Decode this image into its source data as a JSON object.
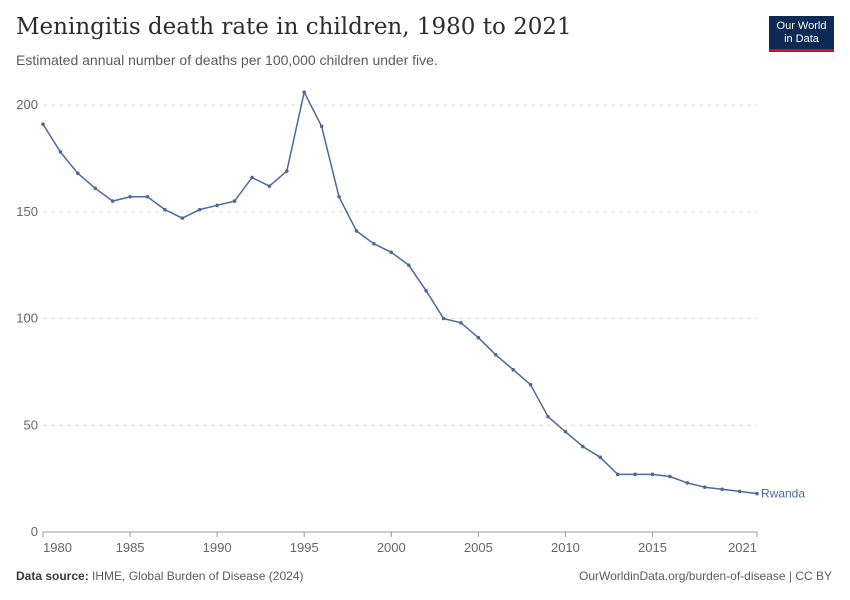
{
  "header": {
    "title": "Meningitis death rate in children, 1980 to 2021",
    "subtitle": "Estimated annual number of deaths per 100,000 children under five.",
    "logo_line1": "Our World",
    "logo_line2": "in Data"
  },
  "footer": {
    "source_label": "Data source:",
    "source_text": "IHME, Global Burden of Disease (2024)",
    "link_text": "OurWorldinData.org/burden-of-disease | CC BY"
  },
  "chart_data": {
    "type": "line",
    "title": "Meningitis death rate in children, 1980 to 2021",
    "subtitle": "Estimated annual number of deaths per 100,000 children under five.",
    "xlabel": "",
    "ylabel": "",
    "xlim": [
      1980,
      2021
    ],
    "ylim": [
      0,
      200
    ],
    "x_ticks": [
      1980,
      1985,
      1990,
      1995,
      2000,
      2005,
      2010,
      2015,
      2021
    ],
    "y_ticks": [
      0,
      50,
      100,
      150,
      200
    ],
    "grid": "horizontal dashed",
    "series": [
      {
        "name": "Rwanda",
        "color": "#4c6a9c",
        "x": [
          1980,
          1981,
          1982,
          1983,
          1984,
          1985,
          1986,
          1987,
          1988,
          1989,
          1990,
          1991,
          1992,
          1993,
          1994,
          1995,
          1996,
          1997,
          1998,
          1999,
          2000,
          2001,
          2002,
          2003,
          2004,
          2005,
          2006,
          2007,
          2008,
          2009,
          2010,
          2011,
          2012,
          2013,
          2014,
          2015,
          2016,
          2017,
          2018,
          2019,
          2020,
          2021
        ],
        "values": [
          191,
          178,
          168,
          161,
          155,
          157,
          157,
          151,
          147,
          151,
          153,
          155,
          166,
          162,
          169,
          206,
          190,
          157,
          141,
          135,
          131,
          125,
          113,
          100,
          98,
          91,
          83,
          76,
          69,
          54,
          47,
          40,
          35,
          27,
          27,
          27,
          26,
          23,
          21,
          20,
          19,
          18
        ]
      }
    ]
  }
}
